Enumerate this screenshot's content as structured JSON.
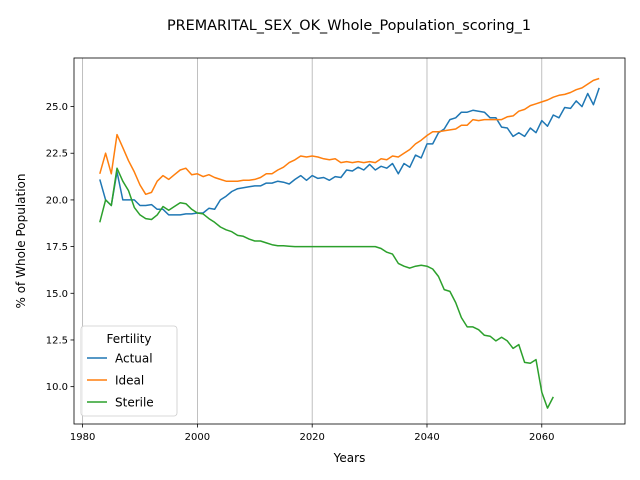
{
  "chart_data": {
    "type": "line",
    "title": "PREMARITAL_SEX_OK_Whole_Population_scoring_1",
    "xlabel": "Years",
    "ylabel": "% of Whole Population",
    "xlim": [
      1978.5,
      2074.5
    ],
    "ylim": [
      8.0,
      27.6
    ],
    "xticks": [
      1980,
      2000,
      2020,
      2040,
      2060
    ],
    "xtick_labels": [
      "1980",
      "2000",
      "2020",
      "2040",
      "2060"
    ],
    "yticks": [
      10.0,
      12.5,
      15.0,
      17.5,
      20.0,
      22.5,
      25.0
    ],
    "ytick_labels": [
      "10.0",
      "12.5",
      "15.0",
      "17.5",
      "20.0",
      "22.5",
      "25.0"
    ],
    "grid": "x-only",
    "legend": {
      "title": "Fertility",
      "placement": "lower-left"
    },
    "series": [
      {
        "name": "Actual",
        "color": "#1f77b4",
        "x": [
          1983,
          1984,
          1985,
          1986,
          1987,
          1988,
          1989,
          1990,
          1991,
          1992,
          1993,
          1994,
          1995,
          1996,
          1997,
          1998,
          1999,
          2000,
          2001,
          2002,
          2003,
          2004,
          2005,
          2006,
          2007,
          2008,
          2009,
          2010,
          2011,
          2012,
          2013,
          2014,
          2015,
          2016,
          2017,
          2018,
          2019,
          2020,
          2021,
          2022,
          2023,
          2024,
          2025,
          2026,
          2027,
          2028,
          2029,
          2030,
          2031,
          2032,
          2033,
          2034,
          2035,
          2036,
          2037,
          2038,
          2039,
          2040,
          2041,
          2042,
          2043,
          2044,
          2045,
          2046,
          2047,
          2048,
          2049,
          2050,
          2051,
          2052,
          2053,
          2054,
          2055,
          2056,
          2057,
          2058,
          2059,
          2060,
          2061,
          2062,
          2063,
          2064,
          2065,
          2066,
          2067,
          2068,
          2069,
          2070
        ],
        "y": [
          21.1,
          20.0,
          19.7,
          21.5,
          20.0,
          20.0,
          20.0,
          19.7,
          19.7,
          19.75,
          19.5,
          19.5,
          19.2,
          19.2,
          19.2,
          19.25,
          19.25,
          19.3,
          19.3,
          19.55,
          19.5,
          20.0,
          20.2,
          20.45,
          20.6,
          20.65,
          20.7,
          20.75,
          20.75,
          20.9,
          20.9,
          21.0,
          20.95,
          20.85,
          21.1,
          21.3,
          21.05,
          21.3,
          21.15,
          21.2,
          21.05,
          21.25,
          21.2,
          21.6,
          21.55,
          21.75,
          21.6,
          21.9,
          21.6,
          21.8,
          21.7,
          21.95,
          21.4,
          21.95,
          21.75,
          22.4,
          22.25,
          23.0,
          23.0,
          23.6,
          23.8,
          24.3,
          24.4,
          24.7,
          24.7,
          24.8,
          24.75,
          24.7,
          24.4,
          24.4,
          23.9,
          23.85,
          23.4,
          23.6,
          23.4,
          23.85,
          23.6,
          24.25,
          23.95,
          24.55,
          24.4,
          24.95,
          24.9,
          25.3,
          25.0,
          25.7,
          25.1,
          26.0
        ]
      },
      {
        "name": "Ideal",
        "color": "#ff7f0e",
        "x": [
          1983,
          1984,
          1985,
          1986,
          1987,
          1988,
          1989,
          1990,
          1991,
          1992,
          1993,
          1994,
          1995,
          1996,
          1997,
          1998,
          1999,
          2000,
          2001,
          2002,
          2003,
          2004,
          2005,
          2006,
          2007,
          2008,
          2009,
          2010,
          2011,
          2012,
          2013,
          2014,
          2015,
          2016,
          2017,
          2018,
          2019,
          2020,
          2021,
          2022,
          2023,
          2024,
          2025,
          2026,
          2027,
          2028,
          2029,
          2030,
          2031,
          2032,
          2033,
          2034,
          2035,
          2036,
          2037,
          2038,
          2039,
          2040,
          2041,
          2042,
          2043,
          2044,
          2045,
          2046,
          2047,
          2048,
          2049,
          2050,
          2051,
          2052,
          2053,
          2054,
          2055,
          2056,
          2057,
          2058,
          2059,
          2060,
          2061,
          2062,
          2063,
          2064,
          2065,
          2066,
          2067,
          2068,
          2069,
          2070
        ],
        "y": [
          21.4,
          22.5,
          21.4,
          23.5,
          22.8,
          22.1,
          21.5,
          20.8,
          20.3,
          20.4,
          21.0,
          21.3,
          21.1,
          21.35,
          21.6,
          21.7,
          21.35,
          21.4,
          21.25,
          21.35,
          21.2,
          21.1,
          21.0,
          21.0,
          21.0,
          21.05,
          21.05,
          21.1,
          21.2,
          21.4,
          21.4,
          21.6,
          21.75,
          22.0,
          22.15,
          22.35,
          22.3,
          22.35,
          22.3,
          22.2,
          22.15,
          22.2,
          22.0,
          22.05,
          22.0,
          22.05,
          22.0,
          22.05,
          22.0,
          22.2,
          22.15,
          22.35,
          22.3,
          22.5,
          22.7,
          23.0,
          23.2,
          23.45,
          23.65,
          23.65,
          23.7,
          23.75,
          23.8,
          24.0,
          24.0,
          24.3,
          24.25,
          24.3,
          24.3,
          24.3,
          24.3,
          24.45,
          24.5,
          24.75,
          24.85,
          25.05,
          25.15,
          25.25,
          25.35,
          25.5,
          25.6,
          25.65,
          25.75,
          25.9,
          26.0,
          26.2,
          26.4,
          26.5
        ]
      },
      {
        "name": "Sterile",
        "color": "#2ca02c",
        "x": [
          1983,
          1984,
          1985,
          1986,
          1987,
          1988,
          1989,
          1990,
          1991,
          1992,
          1993,
          1994,
          1995,
          1996,
          1997,
          1998,
          1999,
          2000,
          2001,
          2002,
          2003,
          2004,
          2005,
          2006,
          2007,
          2008,
          2009,
          2010,
          2011,
          2012,
          2013,
          2014,
          2015,
          2016,
          2017,
          2018,
          2019,
          2020,
          2021,
          2022,
          2023,
          2024,
          2025,
          2026,
          2027,
          2028,
          2029,
          2030,
          2031,
          2032,
          2033,
          2034,
          2035,
          2036,
          2037,
          2038,
          2039,
          2040,
          2041,
          2042,
          2043,
          2044,
          2045,
          2046,
          2047,
          2048,
          2049,
          2050,
          2051,
          2052,
          2053,
          2054,
          2055,
          2056,
          2057,
          2058,
          2059,
          2060,
          2061,
          2062
        ],
        "y": [
          18.8,
          20.0,
          19.7,
          21.7,
          21.0,
          20.5,
          19.6,
          19.2,
          19.0,
          18.95,
          19.2,
          19.65,
          19.45,
          19.65,
          19.85,
          19.8,
          19.5,
          19.3,
          19.25,
          19.0,
          18.8,
          18.55,
          18.4,
          18.3,
          18.1,
          18.05,
          17.9,
          17.8,
          17.8,
          17.7,
          17.6,
          17.55,
          17.55,
          17.52,
          17.5,
          17.5,
          17.5,
          17.5,
          17.5,
          17.5,
          17.5,
          17.5,
          17.5,
          17.5,
          17.5,
          17.5,
          17.5,
          17.5,
          17.5,
          17.4,
          17.2,
          17.1,
          16.6,
          16.45,
          16.35,
          16.45,
          16.5,
          16.45,
          16.3,
          15.9,
          15.2,
          15.1,
          14.5,
          13.7,
          13.2,
          13.2,
          13.05,
          12.75,
          12.7,
          12.45,
          12.65,
          12.45,
          12.05,
          12.25,
          11.3,
          11.25,
          11.45,
          9.7,
          8.85,
          9.45
        ]
      }
    ]
  }
}
